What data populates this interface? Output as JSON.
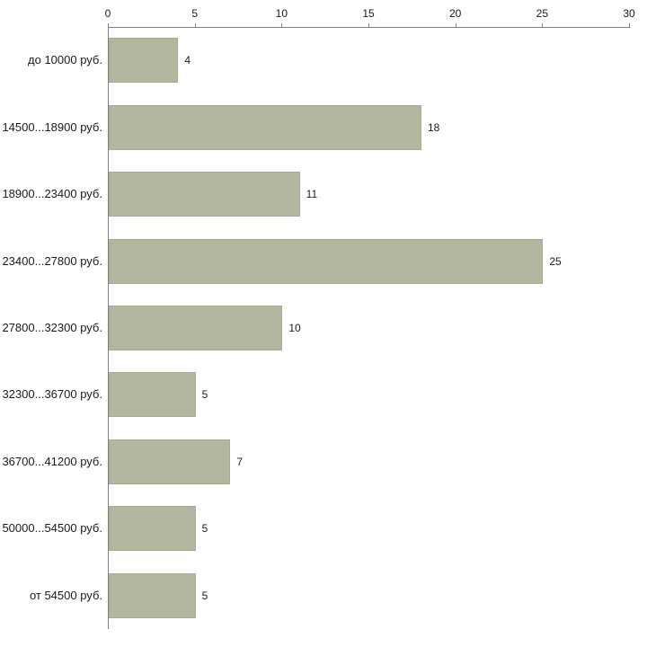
{
  "chart_data": {
    "type": "bar",
    "orientation": "horizontal",
    "title": "",
    "xlabel": "",
    "ylabel": "",
    "categories": [
      "до 10000 руб.",
      "14500...18900 руб.",
      "18900...23400 руб.",
      "23400...27800 руб.",
      "27800...32300 руб.",
      "32300...36700 руб.",
      "36700...41200 руб.",
      "50000...54500 руб.",
      "от 54500 руб."
    ],
    "values": [
      4,
      18,
      11,
      25,
      10,
      5,
      7,
      5,
      5
    ],
    "xlim": [
      0,
      30
    ],
    "xticks": [
      0,
      5,
      10,
      15,
      20,
      25,
      30
    ],
    "grid": false,
    "legend": "none",
    "value_labels_shown": true,
    "colors": {
      "bar_fill": "#b2b7a0",
      "bar_border": "#a6ac93",
      "axis": "#808080",
      "text": "#1a1a1a",
      "background": "#ffffff"
    }
  }
}
